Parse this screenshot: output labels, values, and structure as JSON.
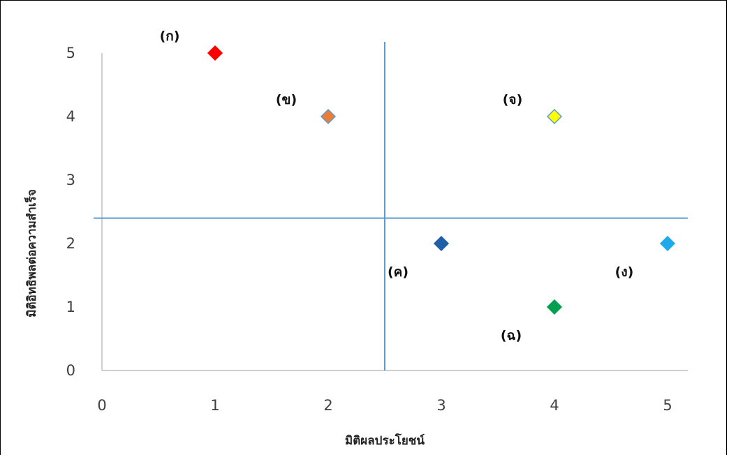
{
  "chart_data": {
    "type": "scatter",
    "title": "",
    "xlabel": "มิติผลประโยชน์",
    "ylabel": "มิติอิทธิพลต่อความสำเร็จ",
    "xlim": [
      0,
      5
    ],
    "ylim": [
      0,
      5
    ],
    "x_ticks": [
      "0",
      "1",
      "2",
      "3",
      "4",
      "5"
    ],
    "y_ticks": [
      "0",
      "1",
      "2",
      "3",
      "4",
      "5"
    ],
    "grid": false,
    "reference_lines": {
      "vertical_x": 2.5,
      "horizontal_y": 2.4,
      "color": "#5b9bd5"
    },
    "points": [
      {
        "label": "(ก)",
        "x": 1,
        "y": 5,
        "color": "#ff0000",
        "label_pos": "above-left"
      },
      {
        "label": "(ข)",
        "x": 2,
        "y": 4,
        "color": "#ed7d31",
        "label_pos": "left"
      },
      {
        "label": "(ค)",
        "x": 3,
        "y": 2,
        "color": "#1f5fa8",
        "label_pos": "below-left"
      },
      {
        "label": "(ง)",
        "x": 5,
        "y": 2,
        "color": "#1fa8ea",
        "label_pos": "below-left"
      },
      {
        "label": "(จ)",
        "x": 4,
        "y": 4,
        "color": "#ffff00",
        "label_pos": "left"
      },
      {
        "label": "(ฉ)",
        "x": 4,
        "y": 1,
        "color": "#00a050",
        "label_pos": "below-left"
      }
    ]
  }
}
